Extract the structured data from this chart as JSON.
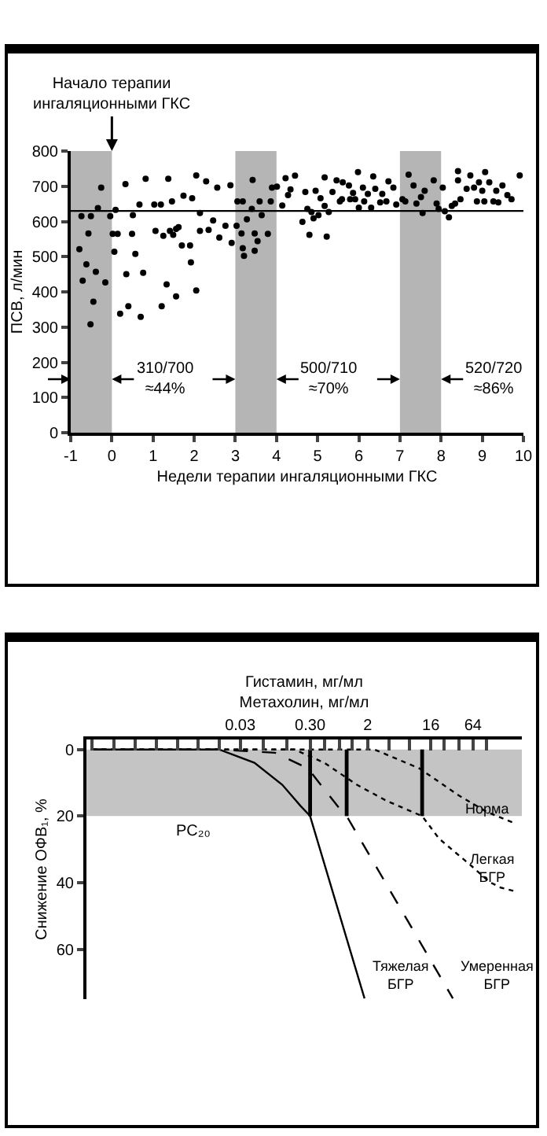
{
  "chart_data": [
    {
      "type": "scatter",
      "xlabel": "Недели терапии ингаляционными ГКС",
      "ylabel": "ПСВ, л/мин",
      "marker": "circle",
      "grid": false,
      "xlim": [
        -1,
        10
      ],
      "xticks": [
        -1,
        0,
        1,
        2,
        3,
        4,
        5,
        6,
        7,
        8,
        9,
        10
      ],
      "ylim": [
        0,
        800
      ],
      "yticks": [
        0,
        100,
        200,
        300,
        400,
        500,
        600,
        700,
        800
      ],
      "series": [
        {
          "color": "#000000",
          "x": [
            -0.26,
            -0.74,
            -0.51,
            -0.34,
            -0.04,
            -0.57,
            -0.79,
            -0.62,
            -0.39,
            -0.71,
            -0.16,
            -0.45,
            -0.52,
            0.2,
            0.4,
            0.7,
            1.21,
            1.33,
            1.56,
            2.05,
            0.09,
            0.33,
            0.02,
            0.14,
            0.06,
            0.51,
            0.35,
            0.49,
            0.57,
            0.67,
            0.76,
            0.82,
            1.03,
            1.06,
            1.19,
            1.25,
            1.37,
            1.41,
            1.46,
            1.49,
            1.56,
            1.62,
            1.74,
            1.7,
            1.9,
            1.92,
            1.95,
            2.05,
            2.14,
            2.14,
            2.29,
            2.35,
            2.46,
            2.56,
            2.61,
            2.76,
            2.91,
            2.88,
            3.05,
            3.18,
            3.03,
            3.15,
            3.18,
            3.42,
            3.4,
            3.21,
            3.28,
            3.47,
            3.47,
            3.59,
            3.64,
            3.79,
            3.89,
            3.86,
            3.54,
            4.01,
            4.14,
            4.22,
            4.28,
            4.34,
            4.45,
            4.63,
            4.7,
            4.75,
            4.8,
            4.85,
            4.9,
            4.95,
            5.02,
            5.07,
            5.17,
            5.22,
            5.17,
            5.27,
            5.36,
            5.46,
            5.54,
            5.59,
            5.61,
            5.76,
            5.79,
            5.86,
            5.91,
            5.98,
            6.0,
            6.1,
            6.13,
            6.22,
            6.3,
            6.35,
            6.4,
            6.52,
            6.57,
            6.67,
            6.72,
            6.84,
            6.91,
            7.06,
            7.21,
            7.13,
            7.33,
            7.4,
            7.55,
            7.51,
            7.6,
            7.82,
            7.89,
            7.94,
            8.04,
            8.09,
            8.19,
            8.26,
            8.34,
            8.41,
            8.47,
            8.41,
            8.62,
            8.71,
            8.8,
            8.87,
            8.92,
            9.0,
            9.05,
            9.07,
            9.17,
            9.27,
            9.34,
            9.39,
            9.49,
            9.61,
            9.71,
            9.91
          ],
          "values": [
            696,
            615,
            615,
            638,
            615,
            566,
            521,
            478,
            457,
            432,
            427,
            372,
            308,
            338,
            359,
            329,
            359,
            421,
            387,
            404,
            633,
            706,
            565,
            565,
            514,
            618,
            450,
            565,
            508,
            648,
            454,
            721,
            648,
            573,
            648,
            559,
            721,
            573,
            657,
            562,
            579,
            584,
            673,
            532,
            532,
            484,
            666,
            731,
            624,
            573,
            714,
            576,
            603,
            696,
            554,
            588,
            539,
            703,
            657,
            657,
            588,
            566,
            524,
            718,
            636,
            502,
            606,
            566,
            517,
            657,
            618,
            565,
            696,
            657,
            544,
            699,
            645,
            723,
            675,
            691,
            730,
            599,
            684,
            636,
            562,
            627,
            609,
            687,
            618,
            666,
            644,
            557,
            725,
            627,
            684,
            717,
            657,
            663,
            711,
            702,
            663,
            681,
            663,
            740,
            639,
            696,
            657,
            678,
            639,
            728,
            693,
            654,
            678,
            657,
            714,
            696,
            648,
            663,
            733,
            657,
            702,
            651,
            624,
            669,
            687,
            717,
            651,
            636,
            696,
            629,
            612,
            644,
            651,
            717,
            663,
            743,
            693,
            731,
            696,
            657,
            711,
            687,
            657,
            740,
            711,
            657,
            687,
            654,
            702,
            675,
            663,
            731
          ]
        }
      ],
      "ref_lines": [
        {
          "axis": "y",
          "value": 630,
          "color": "#000000"
        }
      ],
      "bands": [
        {
          "axis": "x",
          "from": -1,
          "to": 0,
          "label": "310/700\n≈44%",
          "color": "#b5b5b5"
        },
        {
          "axis": "x",
          "from": 3,
          "to": 4,
          "label": "500/710\n≈70%",
          "color": "#b5b5b5"
        },
        {
          "axis": "x",
          "from": 7,
          "to": 8,
          "label": "520/720\n≈86%",
          "color": "#b5b5b5"
        }
      ],
      "annotations": [
        {
          "text": "Начало терапии\nингаляционными ГКС",
          "x": 0,
          "y": 800
        }
      ]
    },
    {
      "type": "line",
      "xlabel": "Гистамин, мг/мл\nМетахолин, мг/мл",
      "ylabel": "Снижение ОФВ₁, %",
      "grid": false,
      "log": "x",
      "xlim": [
        0.00019,
        320
      ],
      "xticks": [
        {
          "value": 0.00023,
          "label": null
        },
        {
          "value": 0.00047,
          "label": null
        },
        {
          "value": 0.00094,
          "label": null
        },
        {
          "value": 0.0019,
          "label": null
        },
        {
          "value": 0.0038,
          "label": null
        },
        {
          "value": 0.0075,
          "label": null
        },
        {
          "value": 0.015,
          "label": null
        },
        0.03,
        {
          "value": 0.065,
          "label": null
        },
        {
          "value": 0.14,
          "label": null
        },
        {
          "value": 0.3,
          "label": "0.30"
        },
        {
          "value": 0.48,
          "label": null
        },
        {
          "value": 0.78,
          "label": null
        },
        {
          "value": 1.2,
          "label": null
        },
        2,
        {
          "value": 4,
          "label": null
        },
        {
          "value": 8,
          "label": null
        },
        16,
        {
          "value": 25,
          "label": null
        },
        {
          "value": 40,
          "label": null
        },
        64,
        {
          "value": 100,
          "label": null
        }
      ],
      "ylim": [
        75,
        -3
      ],
      "yticks": [
        0,
        20,
        40,
        60
      ],
      "bands": [
        {
          "axis": "y",
          "from": 0,
          "to": 20,
          "color": "#c4c4c4",
          "label": "PC₂₀"
        }
      ],
      "series": [
        {
          "name": "Норма",
          "color": "#000000",
          "line_style": "dotted",
          "x": [
            0.00023,
            2.5,
            11,
            40,
            100,
            240
          ],
          "values": [
            0,
            0,
            5.7,
            13.8,
            18.7,
            22
          ]
        },
        {
          "name": "Легкая\nБГР",
          "color": "#000000",
          "line_style": "dotted",
          "x": [
            0.00023,
            0.18,
            0.48,
            1.4,
            3.7,
            12,
            21,
            61,
            110,
            160,
            280
          ],
          "values": [
            0,
            0,
            4,
            10.6,
            15.4,
            20,
            26.8,
            35,
            39.8,
            41.5,
            42.8
          ]
        },
        {
          "name": "Умеренная\nБГР",
          "color": "#000000",
          "line_style": "dashed",
          "x": [
            0.00023,
            0.015,
            0.095,
            0.28,
            0.48,
            0.81,
            1,
            33
          ],
          "values": [
            0,
            0,
            1,
            5.7,
            12,
            18,
            20,
            74.8
          ]
        },
        {
          "name": "Тяжелая\nБГР",
          "color": "#000000",
          "line_style": "solid",
          "x": [
            0.00023,
            0.015,
            0.048,
            0.12,
            0.22,
            0.3,
            1.8
          ],
          "values": [
            0,
            0,
            4,
            10.6,
            17,
            20,
            74.8
          ]
        },
        {
          "color": "#000000",
          "line_style": "solid",
          "x": [
            0.3,
            0.3
          ],
          "values": [
            0,
            20
          ]
        },
        {
          "color": "#000000",
          "line_style": "solid",
          "x": [
            1,
            1
          ],
          "values": [
            0,
            20
          ]
        },
        {
          "color": "#000000",
          "line_style": "solid",
          "x": [
            12,
            12
          ],
          "values": [
            0,
            20
          ]
        }
      ]
    }
  ]
}
